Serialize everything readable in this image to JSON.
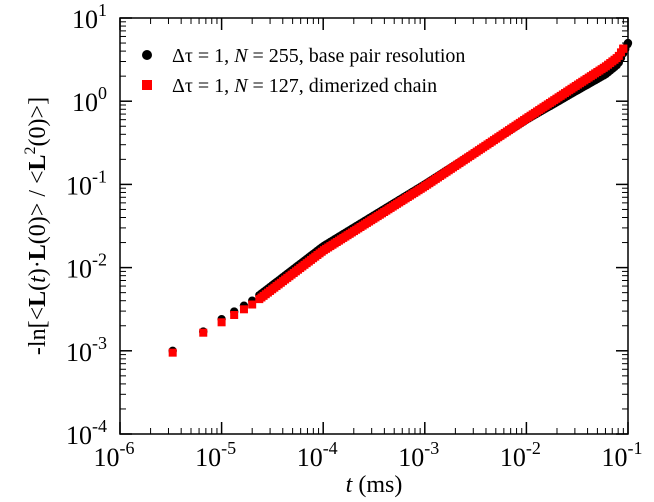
{
  "chart_data": {
    "type": "scatter",
    "xlabel": {
      "var": "t",
      "unit": "(ms)"
    },
    "ylabel": "-ln[<L(t)·L(0)> / <L^2(0)>]",
    "x_scale": "log",
    "y_scale": "log",
    "xlim": [
      1e-06,
      0.1
    ],
    "ylim": [
      0.0001,
      10
    ],
    "x_ticks": [
      {
        "base": "10",
        "exp": "-6"
      },
      {
        "base": "10",
        "exp": "-5"
      },
      {
        "base": "10",
        "exp": "-4"
      },
      {
        "base": "10",
        "exp": "-3"
      },
      {
        "base": "10",
        "exp": "-2"
      },
      {
        "base": "10",
        "exp": "-1"
      }
    ],
    "y_ticks": [
      {
        "base": "10",
        "exp": "-4"
      },
      {
        "base": "10",
        "exp": "-3"
      },
      {
        "base": "10",
        "exp": "-2"
      },
      {
        "base": "10",
        "exp": "-1"
      },
      {
        "base": "10",
        "exp": "0"
      },
      {
        "base": "10",
        "exp": "1"
      }
    ],
    "legend_position": "top-left",
    "series": [
      {
        "name": "Δτ = 1, N = 255, base pair resolution",
        "legend": {
          "pre": "Δτ = 1, ",
          "var": "N",
          "post": " = 255, base pair resolution"
        },
        "marker": "circle",
        "color": "#000000",
        "anchors_x": [
          3.3e-06,
          6.6e-06,
          1e-05,
          2e-05,
          0.0001,
          0.001,
          0.01,
          0.03,
          0.06,
          0.08,
          0.1
        ],
        "anchors_y": [
          0.001,
          0.0017,
          0.0024,
          0.004,
          0.018,
          0.1,
          0.6,
          1.3,
          2.1,
          2.8,
          5.0
        ],
        "x_range": [
          3.3e-06,
          0.1
        ]
      },
      {
        "name": "Δτ = 1, N = 127, dimerized chain",
        "legend": {
          "pre": "Δτ = 1, ",
          "var": "N",
          "post": " = 127, dimerized chain"
        },
        "marker": "square",
        "color": "#ff0000",
        "anchors_x": [
          3.3e-06,
          6.6e-06,
          1e-05,
          2e-05,
          0.0001,
          0.001,
          0.01,
          0.03,
          0.06,
          0.08,
          0.09
        ],
        "anchors_y": [
          0.00095,
          0.00165,
          0.0022,
          0.0036,
          0.016,
          0.095,
          0.62,
          1.5,
          2.6,
          3.4,
          4.3
        ],
        "x_range": [
          3.3e-06,
          0.09
        ]
      }
    ]
  }
}
